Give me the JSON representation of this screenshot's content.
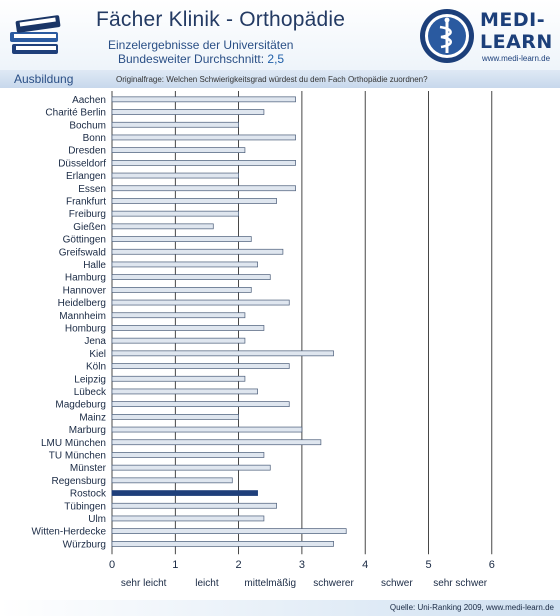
{
  "header": {
    "title": "Fächer Klinik - Orthopädie",
    "subtitle_line1": "Einzelergebnisse der Universitäten",
    "subtitle_line2_prefix": "Bundesweiter Durchschnitt: ",
    "subtitle_line2_value": "2,5",
    "logo_line1": "MEDI-",
    "logo_line2": "LEARN",
    "logo_url": "www.medi-learn.de"
  },
  "section": {
    "label": "Ausbildung",
    "question": "Originalfrage: Welchen Schwierigkeitsgrad würdest du dem Fach Orthopädie zuordnen?"
  },
  "footer": {
    "source": "Quelle: Uni-Ranking 2009, www.medi-learn.de"
  },
  "colors": {
    "bar_fill": "#dfe6ef",
    "bar_stroke": "#4a5c78",
    "highlight": "#1f3f7a",
    "grid": "#1a1a1a",
    "brand": "#1c3f7a"
  },
  "chart_data": {
    "type": "bar",
    "orientation": "horizontal",
    "categories": [
      "Aachen",
      "Charité Berlin",
      "Bochum",
      "Bonn",
      "Dresden",
      "Düsseldorf",
      "Erlangen",
      "Essen",
      "Frankfurt",
      "Freiburg",
      "Gießen",
      "Göttingen",
      "Greifswald",
      "Halle",
      "Hamburg",
      "Hannover",
      "Heidelberg",
      "Mannheim",
      "Homburg",
      "Jena",
      "Kiel",
      "Köln",
      "Leipzig",
      "Lübeck",
      "Magdeburg",
      "Mainz",
      "Marburg",
      "LMU München",
      "TU München",
      "Münster",
      "Regensburg",
      "Rostock",
      "Tübingen",
      "Ulm",
      "Witten-Herdecke",
      "Würzburg"
    ],
    "values": [
      2.9,
      2.4,
      2.0,
      2.9,
      2.1,
      2.9,
      2.0,
      2.9,
      2.6,
      2.0,
      1.6,
      2.2,
      2.7,
      2.3,
      2.5,
      2.2,
      2.8,
      2.1,
      2.4,
      2.1,
      3.5,
      2.8,
      2.1,
      2.3,
      2.8,
      2.0,
      3.0,
      3.3,
      2.4,
      2.5,
      1.9,
      2.3,
      2.6,
      2.4,
      3.7,
      3.5
    ],
    "highlight": "Rostock",
    "xlim": [
      0,
      6
    ],
    "x_ticks": [
      0,
      1,
      2,
      3,
      4,
      5,
      6
    ],
    "x_tick_labels": [
      "0",
      "1",
      "2",
      "3",
      "4",
      "5",
      "6"
    ],
    "x_category_labels": [
      "sehr leicht",
      "leicht",
      "mittelmäßig",
      "schwerer",
      "schwer",
      "sehr schwer"
    ],
    "grid": true
  }
}
